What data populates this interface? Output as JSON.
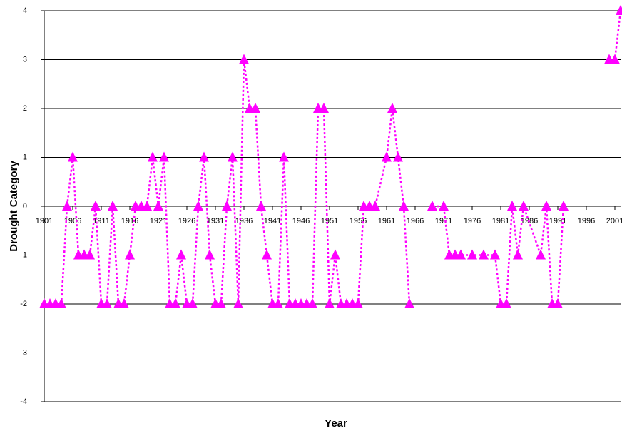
{
  "chart_data": {
    "type": "line",
    "x_label": "Year",
    "y_label": "Drought Category",
    "x": [
      1901,
      1902,
      1903,
      1904,
      1905,
      1906,
      1907,
      1908,
      1909,
      1910,
      1911,
      1912,
      1913,
      1914,
      1915,
      1916,
      1917,
      1918,
      1919,
      1920,
      1921,
      1922,
      1923,
      1924,
      1925,
      1926,
      1927,
      1928,
      1929,
      1930,
      1931,
      1932,
      1933,
      1934,
      1935,
      1936,
      1937,
      1938,
      1939,
      1940,
      1941,
      1942,
      1943,
      1944,
      1945,
      1946,
      1947,
      1948,
      1949,
      1950,
      1951,
      1952,
      1953,
      1954,
      1955,
      1956,
      1957,
      1958,
      1959,
      1961,
      1962,
      1963,
      1964,
      1965,
      1966,
      1969,
      1971,
      1972,
      1973,
      1974,
      1976,
      1978,
      1980,
      1981,
      1982,
      1983,
      1984,
      1985,
      1988,
      1989,
      1990,
      1991,
      1992,
      1993,
      2000,
      2001,
      2002
    ],
    "series": [
      {
        "name": "Drought Category",
        "color": "#ff00ff",
        "values": [
          -2,
          -2,
          -2,
          -2,
          0,
          1,
          -1,
          -1,
          -1,
          0,
          -2,
          -2,
          0,
          -2,
          -2,
          -1,
          0,
          0,
          0,
          1,
          0,
          1,
          -2,
          -2,
          -1,
          -2,
          -2,
          0,
          1,
          -1,
          -2,
          -2,
          0,
          1,
          -2,
          3,
          2,
          2,
          0,
          -1,
          -2,
          -2,
          1,
          -2,
          -2,
          -2,
          -2,
          -2,
          2,
          2,
          -2,
          -1,
          -2,
          -2,
          -2,
          -2,
          0,
          0,
          0,
          1,
          2,
          1,
          0,
          -2,
          null,
          0,
          0,
          -1,
          -1,
          -1,
          -1,
          -1,
          -1,
          -2,
          -2,
          0,
          -1,
          0,
          -1,
          0,
          -2,
          -2,
          0,
          null,
          3,
          3,
          4
        ]
      }
    ],
    "xlim": [
      1901,
      2002
    ],
    "xticks": [
      1901,
      1906,
      1911,
      1916,
      1921,
      1926,
      1931,
      1936,
      1941,
      1946,
      1951,
      1956,
      1961,
      1966,
      1971,
      1976,
      1981,
      1986,
      1991,
      1996,
      2001
    ],
    "ylim": [
      -4,
      4
    ],
    "yticks": [
      -4,
      -3,
      -2,
      -1,
      0,
      1,
      2,
      3,
      4
    ],
    "grid": true
  }
}
